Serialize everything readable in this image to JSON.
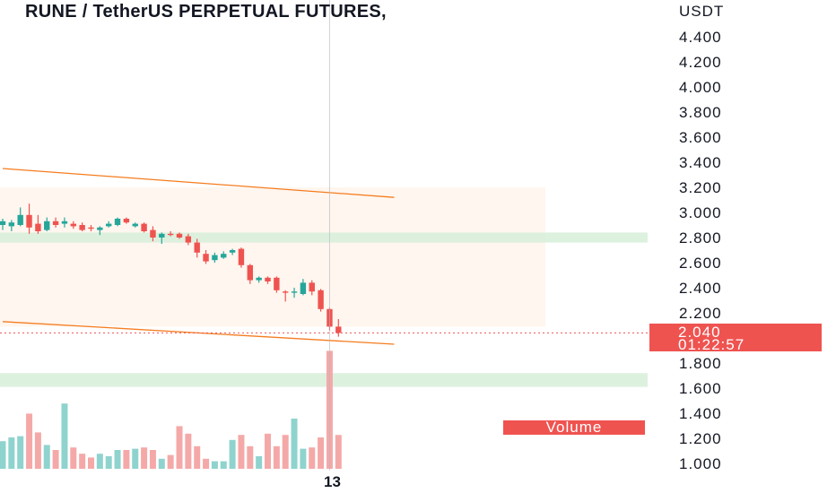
{
  "title": "RUNE / TetherUS PERPETUAL FUTURES,",
  "currency": "USDT",
  "last_price": "2.040",
  "countdown": "01:22:57",
  "volume_label": "Volume",
  "x_tick": "13",
  "colors": {
    "up": "#26a69a",
    "down": "#ef5350",
    "up_volume": "#8fd3ce",
    "down_volume": "#f4a9a8",
    "channel": "#f57c1f",
    "zone": "#d7eed9"
  },
  "chart_data": {
    "type": "candlestick",
    "y_axis": {
      "ticks": [
        "4.400",
        "4.200",
        "4.000",
        "3.800",
        "3.600",
        "3.400",
        "3.200",
        "3.000",
        "2.800",
        "2.600",
        "2.400",
        "2.200",
        "1.800",
        "1.600",
        "1.400",
        "1.200",
        "1.000"
      ],
      "range": [
        0.95,
        4.55
      ]
    },
    "candles": [
      {
        "o": 2.9,
        "h": 2.95,
        "l": 2.86,
        "c": 2.93
      },
      {
        "o": 2.89,
        "h": 2.94,
        "l": 2.85,
        "c": 2.92
      },
      {
        "o": 2.9,
        "h": 3.04,
        "l": 2.89,
        "c": 2.98
      },
      {
        "o": 2.98,
        "h": 3.07,
        "l": 2.83,
        "c": 2.88
      },
      {
        "o": 2.91,
        "h": 2.98,
        "l": 2.83,
        "c": 2.85
      },
      {
        "o": 2.86,
        "h": 2.96,
        "l": 2.85,
        "c": 2.93
      },
      {
        "o": 2.93,
        "h": 2.96,
        "l": 2.88,
        "c": 2.9
      },
      {
        "o": 2.91,
        "h": 2.96,
        "l": 2.88,
        "c": 2.93
      },
      {
        "o": 2.91,
        "h": 2.93,
        "l": 2.87,
        "c": 2.89
      },
      {
        "o": 2.9,
        "h": 2.92,
        "l": 2.85,
        "c": 2.86
      },
      {
        "o": 2.88,
        "h": 2.9,
        "l": 2.85,
        "c": 2.87
      },
      {
        "o": 2.86,
        "h": 2.89,
        "l": 2.82,
        "c": 2.88
      },
      {
        "o": 2.89,
        "h": 2.93,
        "l": 2.88,
        "c": 2.91
      },
      {
        "o": 2.9,
        "h": 2.96,
        "l": 2.89,
        "c": 2.95
      },
      {
        "o": 2.95,
        "h": 2.96,
        "l": 2.91,
        "c": 2.92
      },
      {
        "o": 2.89,
        "h": 2.92,
        "l": 2.88,
        "c": 2.91
      },
      {
        "o": 2.91,
        "h": 2.92,
        "l": 2.84,
        "c": 2.85
      },
      {
        "o": 2.86,
        "h": 2.89,
        "l": 2.77,
        "c": 2.8
      },
      {
        "o": 2.8,
        "h": 2.84,
        "l": 2.75,
        "c": 2.83
      },
      {
        "o": 2.83,
        "h": 2.85,
        "l": 2.81,
        "c": 2.82
      },
      {
        "o": 2.83,
        "h": 2.84,
        "l": 2.79,
        "c": 2.8
      },
      {
        "o": 2.81,
        "h": 2.83,
        "l": 2.74,
        "c": 2.76
      },
      {
        "o": 2.76,
        "h": 2.79,
        "l": 2.64,
        "c": 2.68
      },
      {
        "o": 2.67,
        "h": 2.7,
        "l": 2.59,
        "c": 2.61
      },
      {
        "o": 2.62,
        "h": 2.68,
        "l": 2.6,
        "c": 2.66
      },
      {
        "o": 2.64,
        "h": 2.69,
        "l": 2.63,
        "c": 2.67
      },
      {
        "o": 2.68,
        "h": 2.71,
        "l": 2.66,
        "c": 2.7
      },
      {
        "o": 2.71,
        "h": 2.72,
        "l": 2.56,
        "c": 2.58
      },
      {
        "o": 2.58,
        "h": 2.59,
        "l": 2.43,
        "c": 2.46
      },
      {
        "o": 2.46,
        "h": 2.49,
        "l": 2.44,
        "c": 2.48
      },
      {
        "o": 2.48,
        "h": 2.49,
        "l": 2.43,
        "c": 2.45
      },
      {
        "o": 2.48,
        "h": 2.49,
        "l": 2.36,
        "c": 2.38
      },
      {
        "o": 2.37,
        "h": 2.38,
        "l": 2.29,
        "c": 2.36
      },
      {
        "o": 2.36,
        "h": 2.4,
        "l": 2.32,
        "c": 2.37
      },
      {
        "o": 2.35,
        "h": 2.47,
        "l": 2.34,
        "c": 2.44
      },
      {
        "o": 2.44,
        "h": 2.46,
        "l": 2.34,
        "c": 2.37
      },
      {
        "o": 2.38,
        "h": 2.39,
        "l": 2.21,
        "c": 2.23
      },
      {
        "o": 2.23,
        "h": 2.24,
        "l": 2.06,
        "c": 2.09
      },
      {
        "o": 2.09,
        "h": 2.15,
        "l": 2.01,
        "c": 2.04
      }
    ],
    "volume": [
      0.22,
      0.25,
      0.26,
      0.44,
      0.29,
      0.19,
      0.15,
      0.52,
      0.17,
      0.12,
      0.09,
      0.12,
      0.1,
      0.15,
      0.15,
      0.16,
      0.17,
      0.15,
      0.08,
      0.11,
      0.34,
      0.28,
      0.18,
      0.08,
      0.06,
      0.06,
      0.23,
      0.27,
      0.18,
      0.1,
      0.28,
      0.18,
      0.27,
      0.4,
      0.16,
      0.17,
      0.25,
      0.94,
      0.27
    ],
    "channel_lines": [
      {
        "p1": [
          0,
          3.35
        ],
        "p2": [
          44,
          3.12
        ]
      },
      {
        "p1": [
          0,
          2.13
        ],
        "p2": [
          44,
          1.95
        ]
      }
    ],
    "zones": [
      {
        "from": 2.76,
        "to": 2.84
      },
      {
        "from": 1.61,
        "to": 1.72
      }
    ],
    "shaded_band": {
      "from": 2.09,
      "to": 3.2
    },
    "crosshair_candle": 37
  }
}
